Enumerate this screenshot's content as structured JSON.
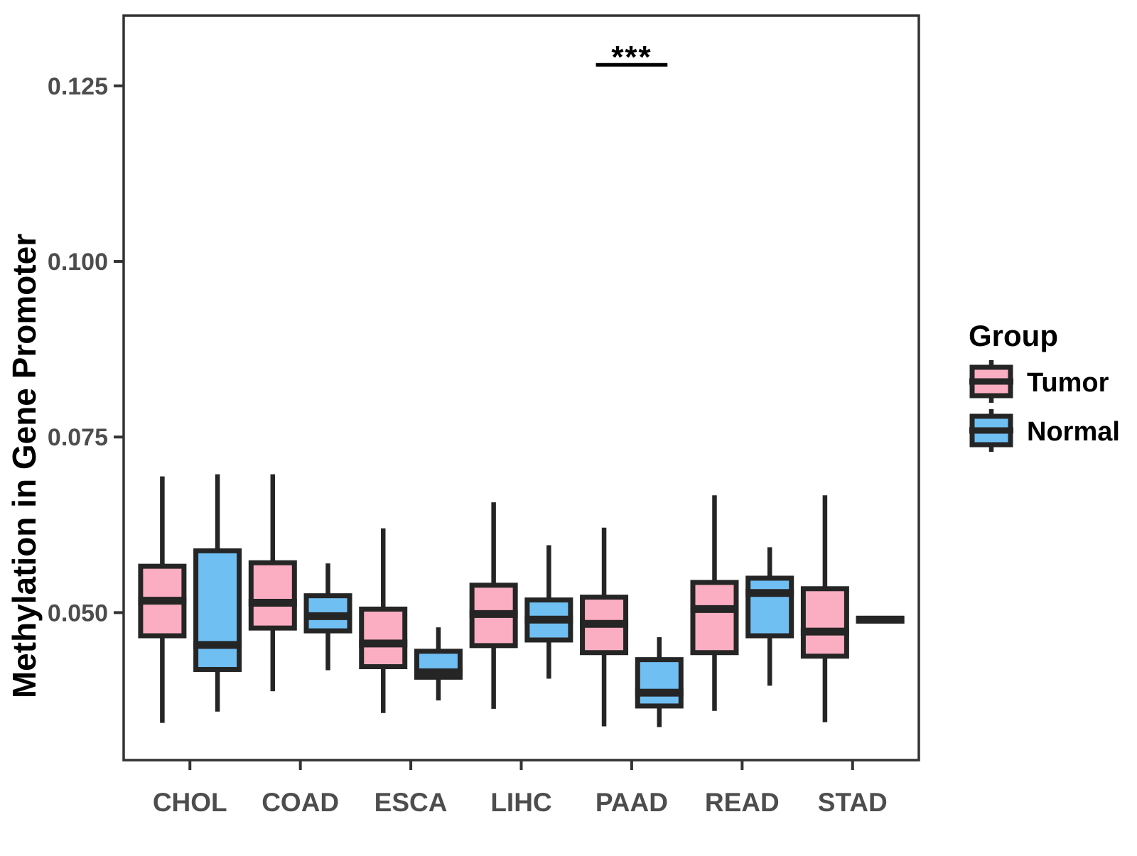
{
  "chart_data": {
    "type": "boxplot",
    "title": "",
    "xlabel": "",
    "ylabel": "Methylation in Gene Promoter",
    "categories": [
      "CHOL",
      "COAD",
      "ESCA",
      "LIHC",
      "PAAD",
      "READ",
      "STAD"
    ],
    "ylim": [
      0.029,
      0.135
    ],
    "yticks": [
      0.05,
      0.075,
      0.1,
      0.125
    ],
    "ytick_labels": [
      "0.050",
      "0.075",
      "0.100",
      "0.125"
    ],
    "grid": false,
    "legend": {
      "title": "Group",
      "position": "right",
      "entries": [
        {
          "label": "Tumor",
          "color": "#FBAEC1"
        },
        {
          "label": "Normal",
          "color": "#70BFF3"
        }
      ]
    },
    "significance": {
      "category": "PAAD",
      "label": "***",
      "y": 0.128
    },
    "colors": {
      "tumor_fill": "#FBAEC1",
      "normal_fill": "#70BFF3",
      "box_stroke": "#252525",
      "axis_line": "#333333",
      "axis_text": "#4d4d4d",
      "annotation": "#000000",
      "panel_background": "#ffffff"
    },
    "series": [
      {
        "name": "Tumor",
        "color": "#FBAEC1",
        "boxes": [
          {
            "category": "CHOL",
            "min": 0.0343,
            "q1": 0.0467,
            "median": 0.0517,
            "q3": 0.0566,
            "max": 0.0694
          },
          {
            "category": "COAD",
            "min": 0.0388,
            "q1": 0.0478,
            "median": 0.0514,
            "q3": 0.0571,
            "max": 0.0697
          },
          {
            "category": "ESCA",
            "min": 0.0357,
            "q1": 0.0423,
            "median": 0.0456,
            "q3": 0.0505,
            "max": 0.062
          },
          {
            "category": "LIHC",
            "min": 0.0363,
            "q1": 0.0453,
            "median": 0.0498,
            "q3": 0.0539,
            "max": 0.0657
          },
          {
            "category": "PAAD",
            "min": 0.0338,
            "q1": 0.0443,
            "median": 0.0484,
            "q3": 0.0522,
            "max": 0.0621
          },
          {
            "category": "READ",
            "min": 0.036,
            "q1": 0.0443,
            "median": 0.0505,
            "q3": 0.0543,
            "max": 0.0667
          },
          {
            "category": "STAD",
            "min": 0.0344,
            "q1": 0.0438,
            "median": 0.0473,
            "q3": 0.0534,
            "max": 0.0667
          }
        ]
      },
      {
        "name": "Normal",
        "color": "#70BFF3",
        "boxes": [
          {
            "category": "CHOL",
            "min": 0.0359,
            "q1": 0.0419,
            "median": 0.0454,
            "q3": 0.0588,
            "max": 0.0697
          },
          {
            "category": "COAD",
            "min": 0.0418,
            "q1": 0.0474,
            "median": 0.0495,
            "q3": 0.0524,
            "max": 0.057
          },
          {
            "category": "ESCA",
            "min": 0.0375,
            "q1": 0.0408,
            "median": 0.0415,
            "q3": 0.0445,
            "max": 0.0479
          },
          {
            "category": "LIHC",
            "min": 0.0406,
            "q1": 0.0461,
            "median": 0.049,
            "q3": 0.0518,
            "max": 0.0596
          },
          {
            "category": "PAAD",
            "min": 0.0337,
            "q1": 0.0367,
            "median": 0.0386,
            "q3": 0.0433,
            "max": 0.0465
          },
          {
            "category": "READ",
            "min": 0.0396,
            "q1": 0.0467,
            "median": 0.0528,
            "q3": 0.0549,
            "max": 0.0593
          },
          {
            "category": "STAD",
            "min": 0.0488,
            "q1": 0.0488,
            "median": 0.049,
            "q3": 0.0491,
            "max": 0.0493
          }
        ]
      }
    ]
  }
}
